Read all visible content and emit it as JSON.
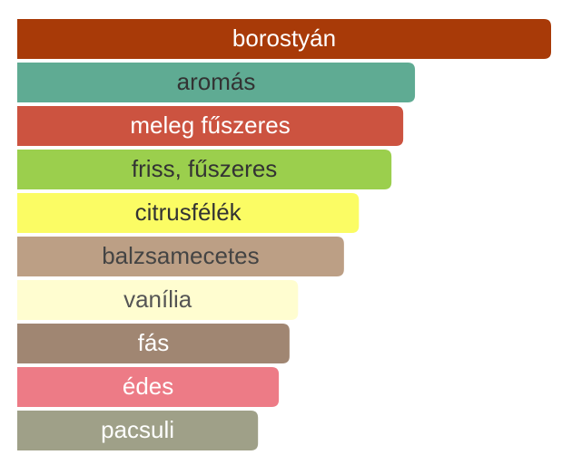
{
  "chart_data": {
    "type": "bar",
    "orientation": "horizontal",
    "categories": [
      "borostyán",
      "aromás",
      "meleg fűszeres",
      "friss, fűszeres",
      "citrusfélék",
      "balzsamecetes",
      "vanília",
      "fás",
      "édes",
      "pacsuli"
    ],
    "values": [
      100,
      74.5,
      72.3,
      70.1,
      64,
      61.2,
      52.6,
      51,
      49,
      45.1
    ],
    "colors": [
      "#a83a08",
      "#5fab93",
      "#cc5340",
      "#9bcf4d",
      "#fbfc64",
      "#bc9f85",
      "#fffdd0",
      "#a08672",
      "#ed7b86",
      "#9fa088"
    ],
    "label_colors": [
      "#ffffff",
      "#333333",
      "#ffffff",
      "#333333",
      "#333333",
      "#444444",
      "#555555",
      "#ffffff",
      "#ffffff",
      "#ffffff"
    ],
    "xlim": [
      0,
      100
    ]
  }
}
